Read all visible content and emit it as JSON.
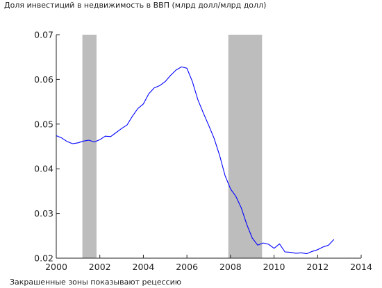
{
  "chart_data": {
    "type": "line",
    "title": "Доля инвестиций в недвижимость в ВВП (млрд долл/млрд долл)",
    "note": "Закрашенные зоны показывают рецессию",
    "xlabel": "",
    "ylabel": "",
    "xlim": [
      2000,
      2014
    ],
    "ylim": [
      0.02,
      0.07
    ],
    "x_ticks": [
      2000,
      2002,
      2004,
      2006,
      2008,
      2010,
      2012,
      2014
    ],
    "x_tick_labels": [
      "2000",
      "2002",
      "2004",
      "2006",
      "2008",
      "2010",
      "2012",
      "2014"
    ],
    "y_ticks": [
      0.02,
      0.03,
      0.04,
      0.05,
      0.06,
      0.07
    ],
    "y_tick_labels": [
      "0.02",
      "0.03",
      "0.04",
      "0.05",
      "0.06",
      "0.07"
    ],
    "grid": false,
    "series_color": "#0000ff",
    "recession_color": "#bdbdbd",
    "recessions": [
      [
        2001.2,
        2001.85
      ],
      [
        2007.9,
        2009.45
      ]
    ],
    "series": [
      {
        "x": [
          2000.0,
          2000.25,
          2000.5,
          2000.75,
          2001.0,
          2001.25,
          2001.5,
          2001.75,
          2002.0,
          2002.25,
          2002.5,
          2002.75,
          2003.0,
          2003.25,
          2003.5,
          2003.75,
          2004.0,
          2004.25,
          2004.5,
          2004.75,
          2005.0,
          2005.25,
          2005.5,
          2005.75,
          2006.0,
          2006.25,
          2006.5,
          2006.75,
          2007.0,
          2007.25,
          2007.5,
          2007.75,
          2008.0,
          2008.25,
          2008.5,
          2008.75,
          2009.0,
          2009.25,
          2009.5,
          2009.75,
          2010.0,
          2010.25,
          2010.5,
          2010.75,
          2011.0,
          2011.25,
          2011.5,
          2011.75,
          2012.0,
          2012.25,
          2012.5,
          2012.75
        ],
        "values": [
          0.0474,
          0.0469,
          0.0461,
          0.0456,
          0.0458,
          0.0462,
          0.0464,
          0.046,
          0.0465,
          0.0473,
          0.0472,
          0.0481,
          0.049,
          0.0498,
          0.0518,
          0.0535,
          0.0545,
          0.0568,
          0.0581,
          0.0586,
          0.0595,
          0.0609,
          0.0621,
          0.0628,
          0.0625,
          0.0595,
          0.0555,
          0.0525,
          0.0497,
          0.0468,
          0.043,
          0.0385,
          0.0355,
          0.0338,
          0.0312,
          0.0275,
          0.0245,
          0.0229,
          0.0234,
          0.0231,
          0.0222,
          0.0232,
          0.0214,
          0.0213,
          0.0211,
          0.0212,
          0.021,
          0.0215,
          0.0219,
          0.0225,
          0.0229,
          0.0242
        ]
      }
    ]
  }
}
